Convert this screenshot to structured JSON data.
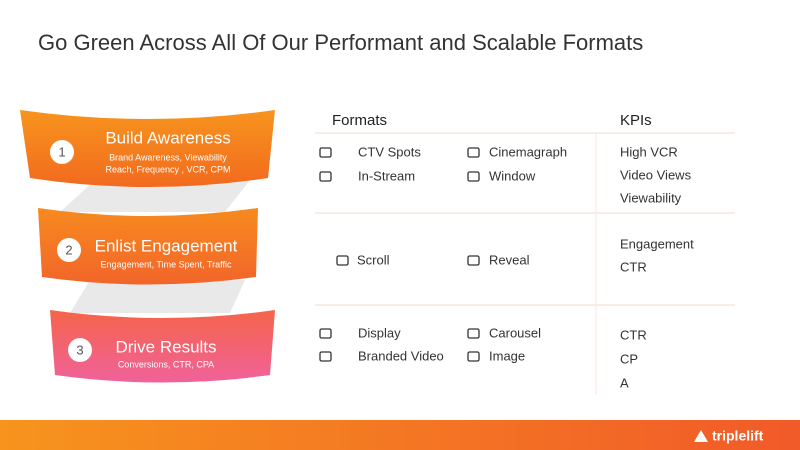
{
  "title": "Go Green Across All Of Our Performant and Scalable Formats",
  "funnel": [
    {
      "number": "1",
      "title": "Build Awareness",
      "lines": [
        "Brand Awareness, Viewability",
        "Reach, Frequency , VCR, CPM"
      ]
    },
    {
      "number": "2",
      "title": "Enlist Engagement",
      "lines": [
        "Engagement, Time Spent, Traffic"
      ]
    },
    {
      "number": "3",
      "title": "Drive Results",
      "lines": [
        "Conversions, CTR, CPA"
      ]
    }
  ],
  "table": {
    "headers": [
      "Formats",
      "KPIs"
    ],
    "rows": [
      {
        "formats": [
          "CTV Spots",
          "Cinemagraph",
          "In-Stream",
          "Window"
        ],
        "kpis": [
          "High VCR",
          "Video Views",
          "Viewability"
        ]
      },
      {
        "formats": [
          "Scroll",
          "Reveal"
        ],
        "kpis": [
          "Engagement",
          "CTR"
        ]
      },
      {
        "formats": [
          "Display",
          "Carousel",
          "Branded Video",
          "Image"
        ],
        "kpis": [
          "CTR",
          "CP",
          "A"
        ]
      }
    ]
  },
  "footer": {
    "logo": "triplelift"
  }
}
